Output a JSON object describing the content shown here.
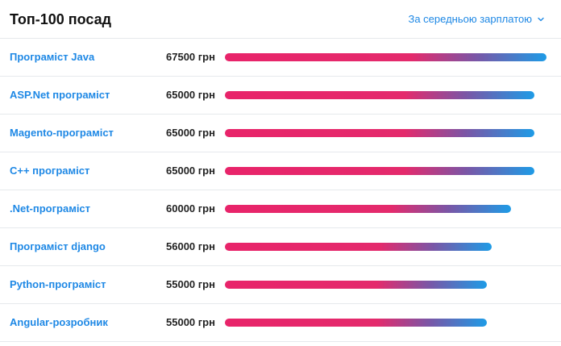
{
  "header": {
    "title": "Топ-100 посад",
    "sort_label": "За середньою зарплатою"
  },
  "colors": {
    "accent": "#1e88e5",
    "bar_start": "#e8246a",
    "bar_end": "#1e9be6"
  },
  "rows": [
    {
      "title": "Програміст Java",
      "salary": "67500 грн",
      "value": 67500
    },
    {
      "title": "ASP.Net програміст",
      "salary": "65000 грн",
      "value": 65000
    },
    {
      "title": "Magento-програміст",
      "salary": "65000 грн",
      "value": 65000
    },
    {
      "title": "C++ програміст",
      "salary": "65000 грн",
      "value": 65000
    },
    {
      "title": ".Net-програміст",
      "salary": "60000 грн",
      "value": 60000
    },
    {
      "title": "Програміст django",
      "salary": "56000 грн",
      "value": 56000
    },
    {
      "title": "Python-програміст",
      "salary": "55000 грн",
      "value": 55000
    },
    {
      "title": "Angular-розробник",
      "salary": "55000 грн",
      "value": 55000
    }
  ]
}
